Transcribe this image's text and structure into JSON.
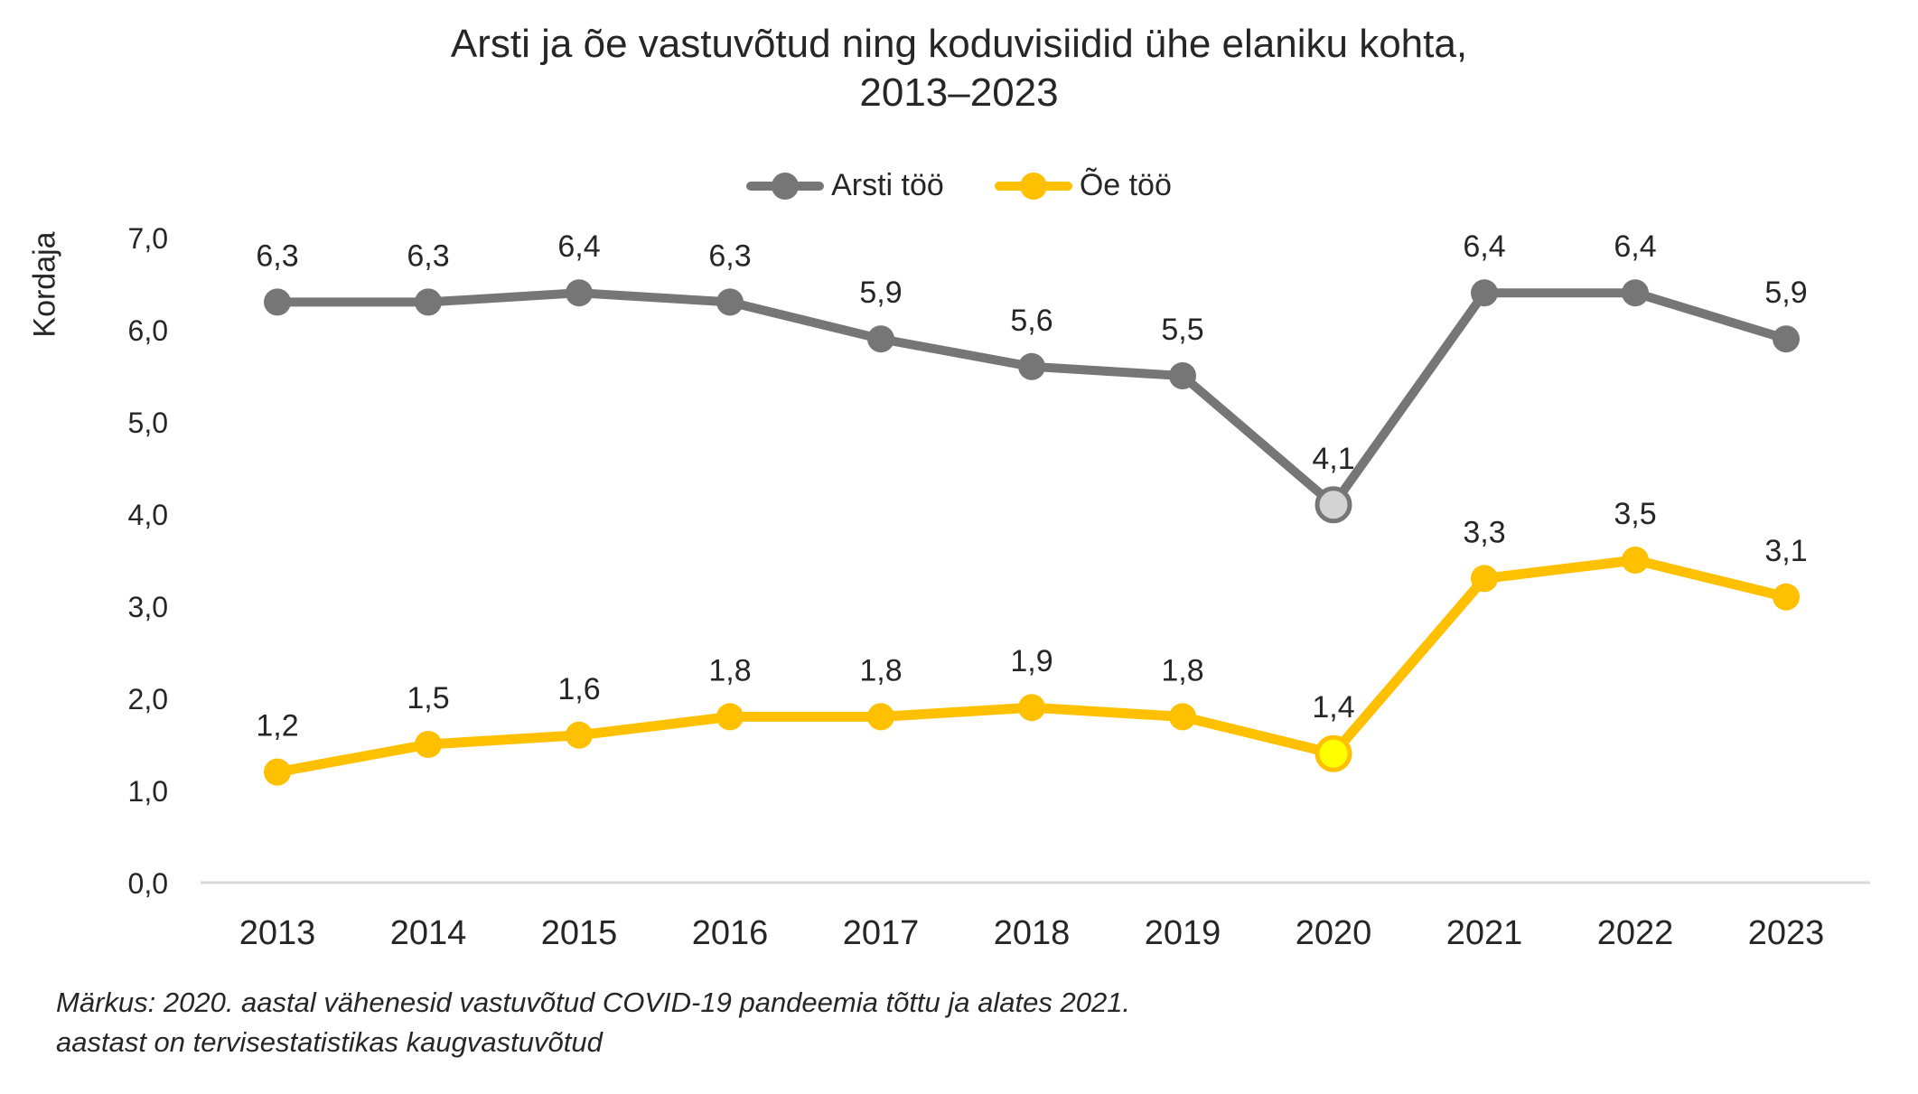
{
  "title_line1": "Arsti ja õe vastuvõtud ning koduvisiidid ühe elaniku kohta,",
  "title_line2": "2013–2023",
  "note_line1": "Märkus: 2020. aastal vähenesid vastuvõtud COVID-19 pandeemia tõttu ja alates 2021.",
  "note_line2": "aastast on tervisestatistikas kaugvastuvõtud",
  "colors": {
    "doctor_series": "#767676",
    "nurse_series": "#FFC000",
    "doctor_highlight_fill": "#D3D3D3",
    "nurse_highlight_fill": "#FFFF00",
    "axis_line": "#D9D9D9",
    "text": "#262626"
  },
  "chart_data": {
    "type": "line",
    "title": "Arsti ja õe vastuvõtud ning koduvisiidid ühe elaniku kohta, 2013–2023",
    "xlabel": "",
    "ylabel": "Kordaja",
    "ylim": [
      0,
      7
    ],
    "grid": false,
    "legend_position": "top",
    "categories": [
      "2013",
      "2014",
      "2015",
      "2016",
      "2017",
      "2018",
      "2019",
      "2020",
      "2021",
      "2022",
      "2023"
    ],
    "yticks": [
      {
        "value": 0,
        "label": "0,0"
      },
      {
        "value": 1,
        "label": "1,0"
      },
      {
        "value": 2,
        "label": "2,0"
      },
      {
        "value": 3,
        "label": "3,0"
      },
      {
        "value": 4,
        "label": "4,0"
      },
      {
        "value": 5,
        "label": "5,0"
      },
      {
        "value": 6,
        "label": "6,0"
      },
      {
        "value": 7,
        "label": "7,0"
      }
    ],
    "series": [
      {
        "name": "Arsti töö",
        "color": "#767676",
        "values": [
          6.3,
          6.3,
          6.4,
          6.3,
          5.9,
          5.6,
          5.5,
          4.1,
          6.4,
          6.4,
          5.9
        ],
        "labels": [
          "6,3",
          "6,3",
          "6,4",
          "6,3",
          "5,9",
          "5,6",
          "5,5",
          "4,1",
          "6,4",
          "6,4",
          "5,9"
        ],
        "highlight_index": 7,
        "highlight_fill": "#D3D3D3"
      },
      {
        "name": "Õe töö",
        "color": "#FFC000",
        "values": [
          1.2,
          1.5,
          1.6,
          1.8,
          1.8,
          1.9,
          1.8,
          1.4,
          3.3,
          3.5,
          3.1
        ],
        "labels": [
          "1,2",
          "1,5",
          "1,6",
          "1,8",
          "1,8",
          "1,9",
          "1,8",
          "1,4",
          "3,3",
          "3,5",
          "3,1"
        ],
        "highlight_index": 7,
        "highlight_fill": "#FFFF00"
      }
    ],
    "annotation": "2020 markers highlighted (COVID-19 dip)"
  }
}
